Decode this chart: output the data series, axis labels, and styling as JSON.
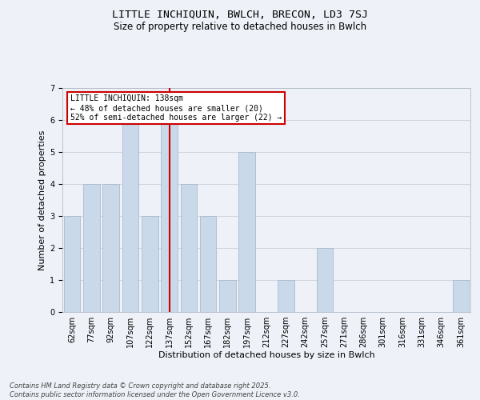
{
  "title_line1": "LITTLE INCHIQUIN, BWLCH, BRECON, LD3 7SJ",
  "title_line2": "Size of property relative to detached houses in Bwlch",
  "xlabel": "Distribution of detached houses by size in Bwlch",
  "ylabel": "Number of detached properties",
  "categories": [
    "62sqm",
    "77sqm",
    "92sqm",
    "107sqm",
    "122sqm",
    "137sqm",
    "152sqm",
    "167sqm",
    "182sqm",
    "197sqm",
    "212sqm",
    "227sqm",
    "242sqm",
    "257sqm",
    "271sqm",
    "286sqm",
    "301sqm",
    "316sqm",
    "331sqm",
    "346sqm",
    "361sqm"
  ],
  "values": [
    3,
    4,
    4,
    6,
    3,
    6,
    4,
    3,
    1,
    5,
    0,
    1,
    0,
    2,
    0,
    0,
    0,
    0,
    0,
    0,
    1
  ],
  "bar_color": "#c9d9ea",
  "bar_edge_color": "#aabbcc",
  "red_line_index": 5,
  "annotation_text": "LITTLE INCHIQUIN: 138sqm\n← 48% of detached houses are smaller (20)\n52% of semi-detached houses are larger (22) →",
  "annotation_box_color": "white",
  "annotation_box_edge": "#cc0000",
  "ylim": [
    0,
    7
  ],
  "yticks": [
    0,
    1,
    2,
    3,
    4,
    5,
    6,
    7
  ],
  "grid_color": "#ccd5e0",
  "background_color": "#eef2f8",
  "footer": "Contains HM Land Registry data © Crown copyright and database right 2025.\nContains public sector information licensed under the Open Government Licence v3.0.",
  "red_line_color": "#cc0000",
  "title_fontsize": 9.5,
  "subtitle_fontsize": 8.5,
  "axis_label_fontsize": 8,
  "tick_fontsize": 7,
  "annotation_fontsize": 7,
  "footer_fontsize": 6
}
